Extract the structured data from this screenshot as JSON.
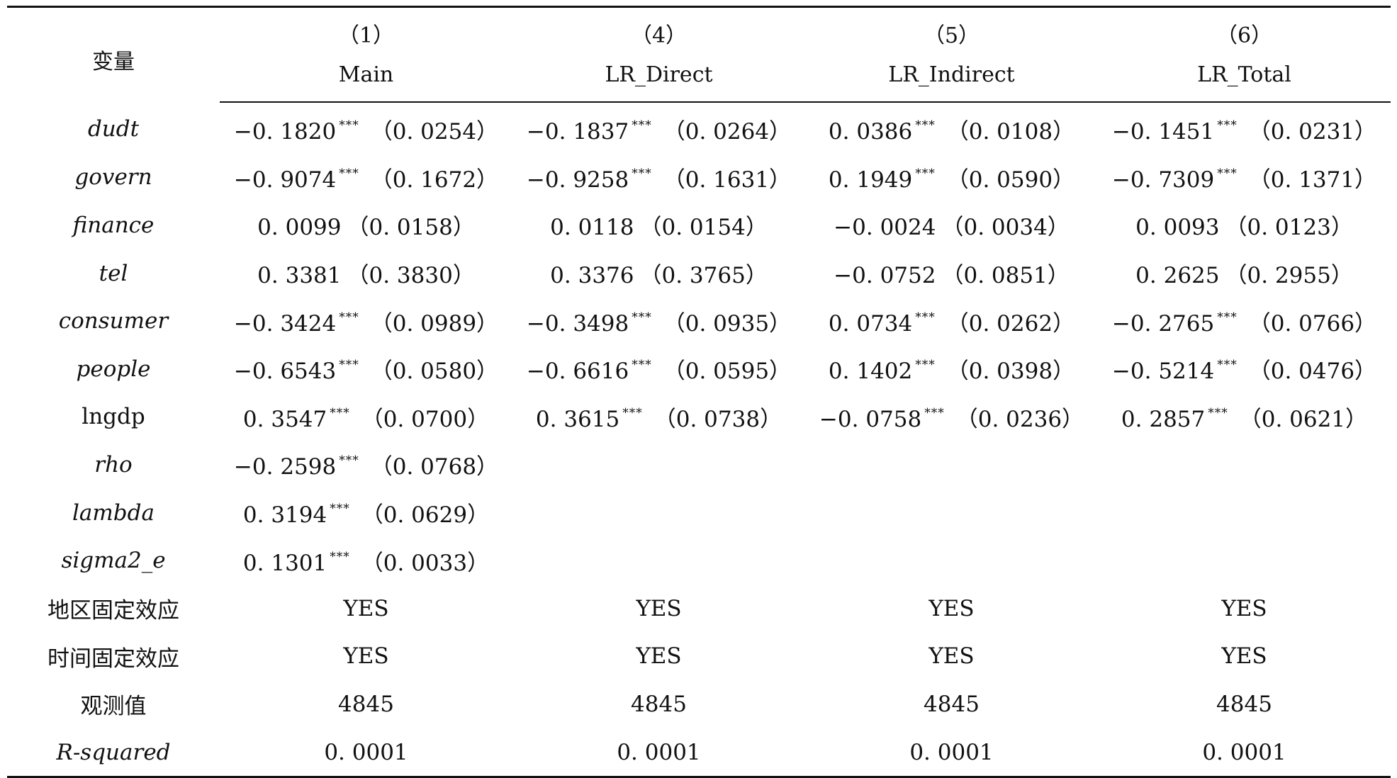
{
  "table": {
    "corner_label": "变量",
    "columns": [
      {
        "number": "（1）",
        "name": "Main"
      },
      {
        "number": "（4）",
        "name": "LR_Direct"
      },
      {
        "number": "（5）",
        "name": "LR_Indirect"
      },
      {
        "number": "（6）",
        "name": "LR_Total"
      }
    ],
    "rows": [
      {
        "label": "dudt",
        "italic": true,
        "cells": [
          {
            "coef": "−0. 1820",
            "stars": "***",
            "se": "（0. 0254）"
          },
          {
            "coef": "−0. 1837",
            "stars": "***",
            "se": "（0. 0264）"
          },
          {
            "coef": "0. 0386",
            "stars": "***",
            "se": "（0. 0108）"
          },
          {
            "coef": "−0. 1451",
            "stars": "***",
            "se": "（0. 0231）"
          }
        ]
      },
      {
        "label": "govern",
        "italic": true,
        "cells": [
          {
            "coef": "−0. 9074",
            "stars": "***",
            "se": "（0. 1672）"
          },
          {
            "coef": "−0. 9258",
            "stars": "***",
            "se": "（0. 1631）"
          },
          {
            "coef": "0. 1949",
            "stars": "***",
            "se": "（0. 0590）"
          },
          {
            "coef": "−0. 7309",
            "stars": "***",
            "se": "（0. 1371）"
          }
        ]
      },
      {
        "label": "finance",
        "italic": true,
        "cells": [
          {
            "coef": "0. 0099",
            "stars": "",
            "se": "（0. 0158）"
          },
          {
            "coef": "0. 0118",
            "stars": "",
            "se": "（0. 0154）"
          },
          {
            "coef": "−0. 0024",
            "stars": "",
            "se": "（0. 0034）"
          },
          {
            "coef": "0. 0093",
            "stars": "",
            "se": "（0. 0123）"
          }
        ]
      },
      {
        "label": "tel",
        "italic": true,
        "cells": [
          {
            "coef": "0. 3381",
            "stars": "",
            "se": "（0. 3830）"
          },
          {
            "coef": "0. 3376",
            "stars": "",
            "se": "（0. 3765）"
          },
          {
            "coef": "−0. 0752",
            "stars": "",
            "se": "（0. 0851）"
          },
          {
            "coef": "0. 2625",
            "stars": "",
            "se": "（0. 2955）"
          }
        ]
      },
      {
        "label": "consumer",
        "italic": true,
        "cells": [
          {
            "coef": "−0. 3424",
            "stars": "***",
            "se": "（0. 0989）"
          },
          {
            "coef": "−0. 3498",
            "stars": "***",
            "se": "（0. 0935）"
          },
          {
            "coef": "0. 0734",
            "stars": "***",
            "se": "（0. 0262）"
          },
          {
            "coef": "−0. 2765",
            "stars": "***",
            "se": "（0. 0766）"
          }
        ]
      },
      {
        "label": "people",
        "italic": true,
        "cells": [
          {
            "coef": "−0. 6543",
            "stars": "***",
            "se": "（0. 0580）"
          },
          {
            "coef": "−0. 6616",
            "stars": "***",
            "se": "（0. 0595）"
          },
          {
            "coef": "0. 1402",
            "stars": "***",
            "se": "（0. 0398）"
          },
          {
            "coef": "−0. 5214",
            "stars": "***",
            "se": "（0. 0476）"
          }
        ]
      },
      {
        "label": "lngdp",
        "italic": false,
        "cells": [
          {
            "coef": "0. 3547",
            "stars": "***",
            "se": "（0. 0700）"
          },
          {
            "coef": "0. 3615",
            "stars": "***",
            "se": "（0. 0738）"
          },
          {
            "coef": "−0. 0758",
            "stars": "***",
            "se": "（0. 0236）"
          },
          {
            "coef": "0. 2857",
            "stars": "***",
            "se": "（0. 0621）"
          }
        ]
      },
      {
        "label": "rho",
        "italic": true,
        "cells": [
          {
            "coef": "−0. 2598",
            "stars": "***",
            "se": "（0. 0768）"
          },
          null,
          null,
          null
        ]
      },
      {
        "label": "lambda",
        "italic": true,
        "cells": [
          {
            "coef": "0. 3194",
            "stars": "***",
            "se": "（0. 0629）"
          },
          null,
          null,
          null
        ]
      },
      {
        "label": "sigma2_e",
        "italic": true,
        "cells": [
          {
            "coef": "0. 1301",
            "stars": "***",
            "se": "（0. 0033）"
          },
          null,
          null,
          null
        ]
      },
      {
        "label": "地区固定效应",
        "italic": false,
        "cells": [
          "YES",
          "YES",
          "YES",
          "YES"
        ]
      },
      {
        "label": "时间固定效应",
        "italic": false,
        "cells": [
          "YES",
          "YES",
          "YES",
          "YES"
        ]
      },
      {
        "label": "观测值",
        "italic": false,
        "cells": [
          "4845",
          "4845",
          "4845",
          "4845"
        ]
      },
      {
        "label": "R-squared",
        "italic": true,
        "cells": [
          "0. 0001",
          "0. 0001",
          "0. 0001",
          "0. 0001"
        ]
      }
    ]
  }
}
